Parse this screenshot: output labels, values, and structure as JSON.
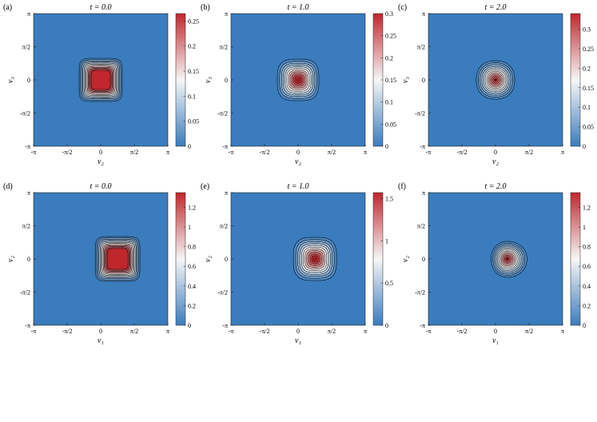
{
  "chart_data": [
    {
      "type": "heatmap",
      "panel_label": "(a)",
      "title": "t = 0.0",
      "xlabel": "v₂",
      "ylabel": "v₃",
      "xlim": [
        "-π",
        "π"
      ],
      "ylim": [
        "-π",
        "π"
      ],
      "xticks": [
        "-π",
        "-π/2",
        "0",
        "π/2",
        "π"
      ],
      "yticks": [
        "-π",
        "-π/2",
        "0",
        "π/2",
        "π"
      ],
      "center": [
        0,
        0
      ],
      "peak": 0.27,
      "shape": "square",
      "colorbar": {
        "range": [
          0,
          0.265
        ],
        "ticks": [
          0,
          0.05,
          0.1,
          0.15,
          0.2,
          0.25
        ],
        "tick_labels": [
          "0",
          "0.05",
          "0.1",
          "0.15",
          "0.2",
          "0.25"
        ]
      }
    },
    {
      "type": "heatmap",
      "panel_label": "(b)",
      "title": "t = 1.0",
      "xlabel": "v₂",
      "ylabel": "v₃",
      "xlim": [
        "-π",
        "π"
      ],
      "ylim": [
        "-π",
        "π"
      ],
      "xticks": [
        "-π",
        "-π/2",
        "0",
        "π/2",
        "π"
      ],
      "yticks": [
        "-π",
        "-π/2",
        "0",
        "π/2",
        "π"
      ],
      "center": [
        0,
        0
      ],
      "peak": 0.31,
      "shape": "rounded",
      "colorbar": {
        "range": [
          0,
          0.3
        ],
        "ticks": [
          0,
          0.05,
          0.1,
          0.15,
          0.2,
          0.25,
          0.3
        ],
        "tick_labels": [
          "0",
          "0.05",
          "0.1",
          "0.15",
          "0.2",
          "0.25",
          "0.3"
        ]
      }
    },
    {
      "type": "heatmap",
      "panel_label": "(c)",
      "title": "t = 2.0",
      "xlabel": "v₂",
      "ylabel": "v₃",
      "xlim": [
        "-π",
        "π"
      ],
      "ylim": [
        "-π",
        "π"
      ],
      "xticks": [
        "-π",
        "-π/2",
        "0",
        "π/2",
        "π"
      ],
      "yticks": [
        "-π",
        "-π/2",
        "0",
        "π/2",
        "π"
      ],
      "center": [
        0,
        0
      ],
      "peak": 0.34,
      "shape": "circular",
      "colorbar": {
        "range": [
          0,
          0.34
        ],
        "ticks": [
          0,
          0.05,
          0.1,
          0.15,
          0.2,
          0.25,
          0.3
        ],
        "tick_labels": [
          "0",
          "0.05",
          "0.1",
          "0.15",
          "0.2",
          "0.25",
          "0.3"
        ]
      }
    },
    {
      "type": "heatmap",
      "panel_label": "(d)",
      "title": "t = 0.0",
      "xlabel": "v₁",
      "ylabel": "v₂",
      "xlim": [
        "-π",
        "π"
      ],
      "ylim": [
        "-π",
        "π"
      ],
      "xticks": [
        "-π",
        "-π/2",
        "0",
        "π/2",
        "π"
      ],
      "yticks": [
        "-π",
        "-π/2",
        "0",
        "π/2",
        "π"
      ],
      "center": [
        0.79,
        0
      ],
      "peak": 1.35,
      "shape": "square",
      "colorbar": {
        "range": [
          0,
          1.35
        ],
        "ticks": [
          0,
          0.2,
          0.4,
          0.6,
          0.8,
          1,
          1.2
        ],
        "tick_labels": [
          "0",
          "0.2",
          "0.4",
          "0.6",
          "0.8",
          "1",
          "1.2"
        ]
      }
    },
    {
      "type": "heatmap",
      "panel_label": "(e)",
      "title": "t = 1.0",
      "xlabel": "v₁",
      "ylabel": "v₂",
      "xlim": [
        "-π",
        "π"
      ],
      "ylim": [
        "-π",
        "π"
      ],
      "xticks": [
        "-π",
        "-π/2",
        "0",
        "π/2",
        "π"
      ],
      "yticks": [
        "-π",
        "-π/2",
        "0",
        "π/2",
        "π"
      ],
      "center": [
        0.79,
        0
      ],
      "peak": 1.57,
      "shape": "rounded",
      "colorbar": {
        "range": [
          0,
          1.57
        ],
        "ticks": [
          0,
          0.5,
          1,
          1.5
        ],
        "tick_labels": [
          "0",
          "0.5",
          "1",
          "1.5"
        ]
      }
    },
    {
      "type": "heatmap",
      "panel_label": "(f)",
      "title": "t = 2.0",
      "xlabel": "v₁",
      "ylabel": "v₂",
      "xlim": [
        "-π",
        "π"
      ],
      "ylim": [
        "-π",
        "π"
      ],
      "xticks": [
        "-π",
        "-π/2",
        "0",
        "π/2",
        "π"
      ],
      "yticks": [
        "-π",
        "-π/2",
        "0",
        "π/2",
        "π"
      ],
      "center": [
        0.55,
        0
      ],
      "peak": 1.35,
      "shape": "circular-skewed",
      "colorbar": {
        "range": [
          0,
          1.35
        ],
        "ticks": [
          0,
          0.2,
          0.4,
          0.6,
          0.8,
          1,
          1.2
        ],
        "tick_labels": [
          "0",
          "0.2",
          "0.4",
          "0.6",
          "0.8",
          "1",
          "1.2"
        ]
      }
    }
  ],
  "colors": {
    "background_field": "#3a7cbd",
    "low": "#3a7cbd",
    "mid": "#f6f6f6",
    "high": "#c0272d",
    "contour": "#000000"
  }
}
